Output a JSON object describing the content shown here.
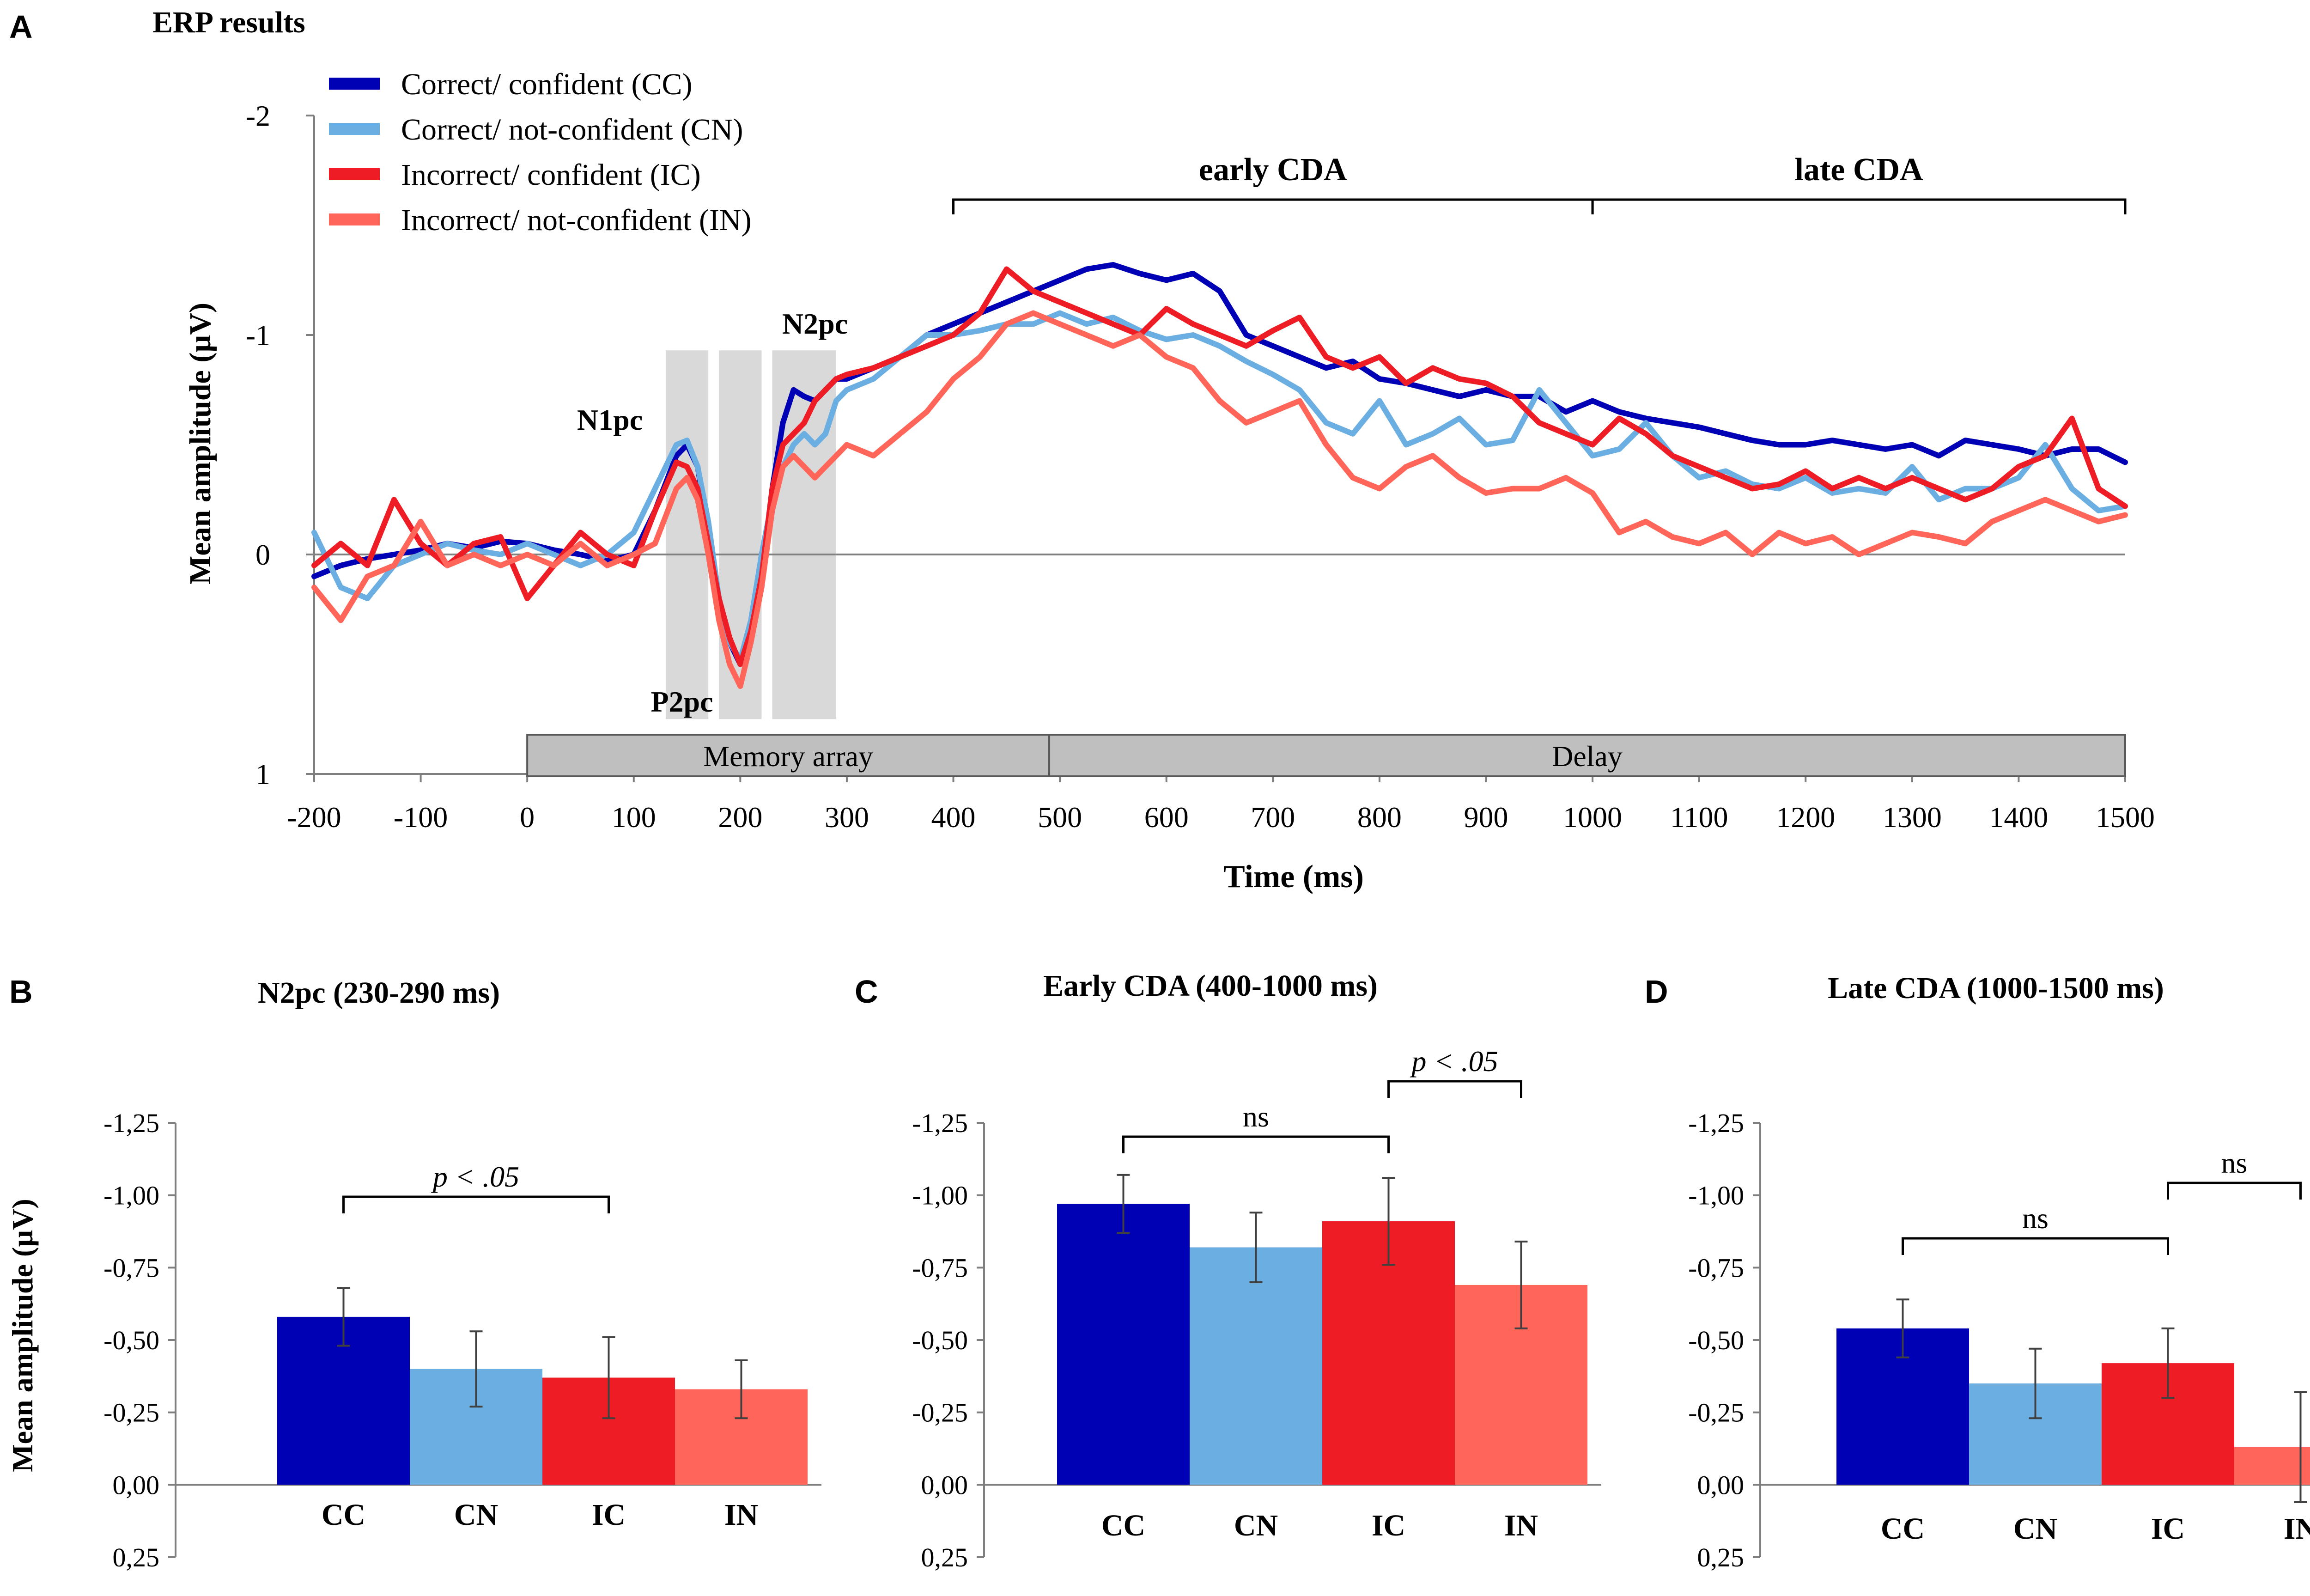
{
  "colors": {
    "CC": "#0000b4",
    "CN": "#6aaee2",
    "IC": "#ee1c24",
    "IN": "#ff6659",
    "shade": "#d9d9d9",
    "phase_bar": "#bfbfbf",
    "axis": "#7f7f7f",
    "text": "#000000"
  },
  "chart_data": [
    {
      "panel": "A",
      "type": "line",
      "title": "ERP results",
      "xlabel": "Time (ms)",
      "ylabel": "Mean amplitude (µV)",
      "xlim": [
        -200,
        1500
      ],
      "ylim": [
        1,
        -2
      ],
      "y_inverted": true,
      "x_ticks": [
        "-200",
        "-100",
        "0",
        "100",
        "200",
        "300",
        "400",
        "500",
        "600",
        "700",
        "800",
        "900",
        "1000",
        "1100",
        "1200",
        "1300",
        "1400",
        "1500"
      ],
      "y_ticks": [
        "-2",
        "-1",
        "0",
        "1"
      ],
      "legend": [
        {
          "key": "CC",
          "label": "Correct/ confident (CC)"
        },
        {
          "key": "CN",
          "label": "Correct/ not-confident (CN)"
        },
        {
          "key": "IC",
          "label": "Incorrect/ confident (IC)"
        },
        {
          "key": "IN",
          "label": "Incorrect/ not-confident (IN)"
        }
      ],
      "component_labels": {
        "n1pc": "N1pc",
        "p2pc": "P2pc",
        "n2pc": "N2pc"
      },
      "shaded_windows_ms": [
        [
          130,
          170
        ],
        [
          180,
          220
        ],
        [
          230,
          290
        ]
      ],
      "brackets": [
        {
          "label": "early CDA",
          "from": 400,
          "to": 1000
        },
        {
          "label": "late CDA",
          "from": 1000,
          "to": 1500
        }
      ],
      "phases": [
        {
          "label": "Memory array",
          "from": 0,
          "to": 490
        },
        {
          "label": "Delay",
          "from": 490,
          "to": 1500
        }
      ],
      "x": [
        -200,
        -175,
        -150,
        -125,
        -100,
        -75,
        -50,
        -25,
        0,
        25,
        50,
        75,
        100,
        120,
        140,
        150,
        160,
        170,
        180,
        190,
        200,
        210,
        220,
        230,
        240,
        250,
        260,
        270,
        280,
        290,
        300,
        325,
        350,
        375,
        400,
        425,
        450,
        475,
        500,
        525,
        550,
        575,
        600,
        625,
        650,
        675,
        700,
        725,
        750,
        775,
        800,
        825,
        850,
        875,
        900,
        925,
        950,
        975,
        1000,
        1025,
        1050,
        1075,
        1100,
        1125,
        1150,
        1175,
        1200,
        1225,
        1250,
        1275,
        1300,
        1325,
        1350,
        1375,
        1400,
        1425,
        1450,
        1475,
        1500
      ],
      "series": [
        {
          "key": "CC",
          "name": "Correct/ confident (CC)",
          "values": [
            0.1,
            0.05,
            0.02,
            0.0,
            -0.02,
            -0.05,
            -0.03,
            -0.06,
            -0.05,
            -0.02,
            0.0,
            0.03,
            0.0,
            -0.2,
            -0.45,
            -0.5,
            -0.4,
            -0.1,
            0.2,
            0.4,
            0.5,
            0.35,
            0.1,
            -0.3,
            -0.6,
            -0.75,
            -0.72,
            -0.7,
            -0.75,
            -0.8,
            -0.8,
            -0.85,
            -0.9,
            -1.0,
            -1.05,
            -1.1,
            -1.15,
            -1.2,
            -1.25,
            -1.3,
            -1.32,
            -1.28,
            -1.25,
            -1.28,
            -1.2,
            -1.0,
            -0.95,
            -0.9,
            -0.85,
            -0.88,
            -0.8,
            -0.78,
            -0.75,
            -0.72,
            -0.75,
            -0.72,
            -0.72,
            -0.65,
            -0.7,
            -0.65,
            -0.62,
            -0.6,
            -0.58,
            -0.55,
            -0.52,
            -0.5,
            -0.5,
            -0.52,
            -0.5,
            -0.48,
            -0.5,
            -0.45,
            -0.52,
            -0.5,
            -0.48,
            -0.45,
            -0.48,
            -0.48,
            -0.42
          ]
        },
        {
          "key": "CN",
          "name": "Correct/ not-confident (CN)",
          "values": [
            -0.1,
            0.15,
            0.2,
            0.05,
            0.0,
            -0.05,
            -0.02,
            0.0,
            -0.05,
            0.0,
            0.05,
            0.0,
            -0.1,
            -0.3,
            -0.5,
            -0.52,
            -0.4,
            -0.15,
            0.2,
            0.4,
            0.48,
            0.3,
            0.0,
            -0.25,
            -0.4,
            -0.5,
            -0.55,
            -0.5,
            -0.55,
            -0.7,
            -0.75,
            -0.8,
            -0.9,
            -1.0,
            -1.0,
            -1.02,
            -1.05,
            -1.05,
            -1.1,
            -1.05,
            -1.08,
            -1.02,
            -0.98,
            -1.0,
            -0.95,
            -0.88,
            -0.82,
            -0.75,
            -0.6,
            -0.55,
            -0.7,
            -0.5,
            -0.55,
            -0.62,
            -0.5,
            -0.52,
            -0.75,
            -0.6,
            -0.45,
            -0.48,
            -0.6,
            -0.45,
            -0.35,
            -0.38,
            -0.32,
            -0.3,
            -0.35,
            -0.28,
            -0.3,
            -0.28,
            -0.4,
            -0.25,
            -0.3,
            -0.3,
            -0.35,
            -0.5,
            -0.3,
            -0.2,
            -0.22
          ]
        },
        {
          "key": "IC",
          "name": "Incorrect/ confident (IC)",
          "values": [
            0.05,
            -0.05,
            0.05,
            -0.25,
            -0.05,
            0.05,
            -0.05,
            -0.08,
            0.2,
            0.05,
            -0.1,
            0.0,
            0.05,
            -0.2,
            -0.42,
            -0.4,
            -0.3,
            -0.05,
            0.2,
            0.38,
            0.5,
            0.35,
            0.1,
            -0.3,
            -0.5,
            -0.55,
            -0.6,
            -0.7,
            -0.75,
            -0.8,
            -0.82,
            -0.85,
            -0.9,
            -0.95,
            -1.0,
            -1.1,
            -1.3,
            -1.2,
            -1.15,
            -1.1,
            -1.05,
            -1.0,
            -1.12,
            -1.05,
            -1.0,
            -0.95,
            -1.02,
            -1.08,
            -0.9,
            -0.85,
            -0.9,
            -0.78,
            -0.85,
            -0.8,
            -0.78,
            -0.72,
            -0.6,
            -0.55,
            -0.5,
            -0.62,
            -0.55,
            -0.45,
            -0.4,
            -0.35,
            -0.3,
            -0.32,
            -0.38,
            -0.3,
            -0.35,
            -0.3,
            -0.35,
            -0.3,
            -0.25,
            -0.3,
            -0.4,
            -0.45,
            -0.62,
            -0.3,
            -0.22
          ]
        },
        {
          "key": "IN",
          "name": "Incorrect/ not-confident (IN)",
          "values": [
            0.15,
            0.3,
            0.1,
            0.05,
            -0.15,
            0.05,
            0.0,
            0.05,
            0.0,
            0.05,
            -0.05,
            0.05,
            0.0,
            -0.05,
            -0.3,
            -0.35,
            -0.25,
            0.0,
            0.3,
            0.5,
            0.6,
            0.4,
            0.15,
            -0.2,
            -0.4,
            -0.45,
            -0.4,
            -0.35,
            -0.4,
            -0.45,
            -0.5,
            -0.45,
            -0.55,
            -0.65,
            -0.8,
            -0.9,
            -1.05,
            -1.1,
            -1.05,
            -1.0,
            -0.95,
            -1.0,
            -0.9,
            -0.85,
            -0.7,
            -0.6,
            -0.65,
            -0.7,
            -0.5,
            -0.35,
            -0.3,
            -0.4,
            -0.45,
            -0.35,
            -0.28,
            -0.3,
            -0.3,
            -0.35,
            -0.28,
            -0.1,
            -0.15,
            -0.08,
            -0.05,
            -0.1,
            0.0,
            -0.1,
            -0.05,
            -0.08,
            0.0,
            -0.05,
            -0.1,
            -0.08,
            -0.05,
            -0.15,
            -0.2,
            -0.25,
            -0.2,
            -0.15,
            -0.18
          ]
        }
      ]
    },
    {
      "panel": "B",
      "type": "bar",
      "title": "N2pc (230-290 ms)",
      "ylabel": "Mean amplitude (µV)",
      "categories": [
        "CC",
        "CN",
        "IC",
        "IN"
      ],
      "values": [
        -0.58,
        -0.4,
        -0.37,
        -0.33
      ],
      "errors": [
        0.1,
        0.13,
        0.14,
        0.1
      ],
      "ylim": [
        0.25,
        -1.25
      ],
      "y_inverted": true,
      "y_ticks": [
        "-1,25",
        "-1,00",
        "-0,75",
        "-0,50",
        "-0,25",
        "0,00",
        "0,25"
      ],
      "comparisons": [
        {
          "from": "CC",
          "to": "IC",
          "label": "p < .05"
        }
      ]
    },
    {
      "panel": "C",
      "type": "bar",
      "title": "Early CDA (400-1000 ms)",
      "categories": [
        "CC",
        "CN",
        "IC",
        "IN"
      ],
      "values": [
        -0.97,
        -0.82,
        -0.91,
        -0.69
      ],
      "errors": [
        0.1,
        0.12,
        0.15,
        0.15
      ],
      "ylim": [
        0.25,
        -1.25
      ],
      "y_inverted": true,
      "y_ticks": [
        "-1,25",
        "-1,00",
        "-0,75",
        "-0,50",
        "-0,25",
        "0,00",
        "0,25"
      ],
      "comparisons": [
        {
          "from": "CC",
          "to": "IC",
          "label": "ns"
        },
        {
          "from": "IC",
          "to": "IN",
          "label": "p < .05"
        }
      ]
    },
    {
      "panel": "D",
      "type": "bar",
      "title": "Late CDA (1000-1500 ms)",
      "categories": [
        "CC",
        "CN",
        "IC",
        "IN"
      ],
      "values": [
        -0.54,
        -0.35,
        -0.42,
        -0.13
      ],
      "errors": [
        0.1,
        0.12,
        0.12,
        0.19
      ],
      "ylim": [
        0.25,
        -1.25
      ],
      "y_inverted": true,
      "y_ticks": [
        "-1,25",
        "-1,00",
        "-0,75",
        "-0,50",
        "-0,25",
        "0,00",
        "0,25"
      ],
      "comparisons": [
        {
          "from": "CC",
          "to": "IC",
          "label": "ns"
        },
        {
          "from": "IC",
          "to": "IN",
          "label": "ns"
        }
      ]
    }
  ],
  "panel_letters": {
    "A": "A",
    "B": "B",
    "C": "C",
    "D": "D"
  }
}
